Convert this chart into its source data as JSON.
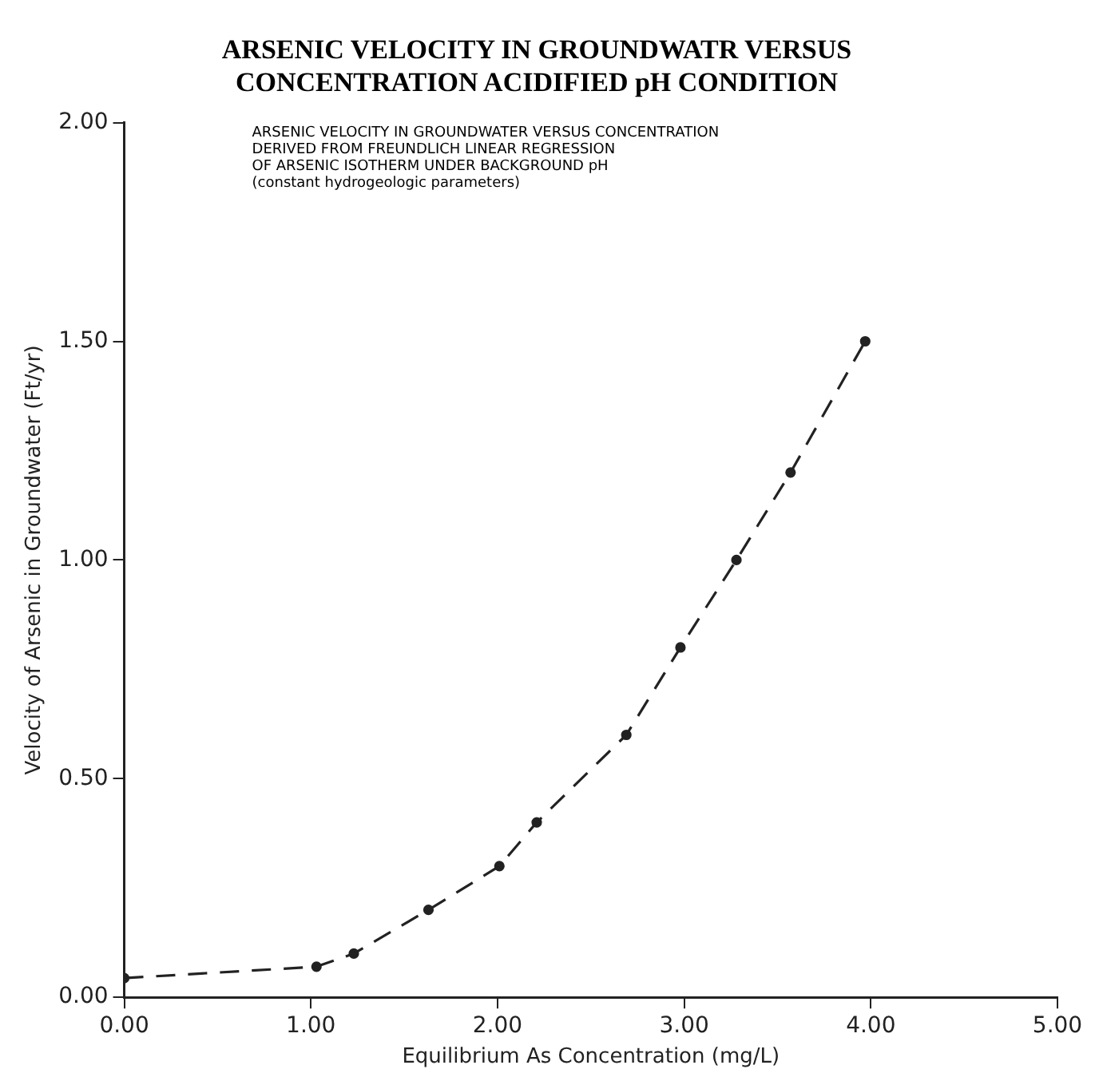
{
  "chart_data": {
    "type": "line",
    "title": [
      "ARSENIC VELOCITY IN GROUNDWATR VERSUS",
      "CONCENTRATION ACIDIFIED pH CONDITION"
    ],
    "xlabel": "Equilibrium As Concentration (mg/L)",
    "ylabel": "Velocity of Arsenic in Groundwater (Ft/yr)",
    "annotations": [
      "ARSENIC VELOCITY IN GROUNDWATER VERSUS CONCENTRATION",
      "DERIVED FROM FREUNDLICH LINEAR REGRESSION",
      "OF ARSENIC ISOTHERM UNDER BACKGROUND pH",
      "(constant hydrogeologic parameters)"
    ],
    "x": [
      0,
      1.03,
      1.23,
      1.63,
      2.01,
      2.21,
      2.69,
      2.98,
      3.28,
      3.57,
      3.97
    ],
    "series": [
      {
        "color": "#222222",
        "values": [
          0.044,
          0.07,
          0.1,
          0.2,
          0.3,
          0.4,
          0.6,
          0.8,
          1.0,
          1.2,
          1.5
        ]
      }
    ],
    "xlim": [
      0,
      5
    ],
    "xticks": [
      {
        "value": 0,
        "label": "0.00"
      },
      {
        "value": 1,
        "label": "1.00"
      },
      {
        "value": 2,
        "label": "2.00"
      },
      {
        "value": 3,
        "label": "3.00"
      },
      {
        "value": 4,
        "label": "4.00"
      },
      {
        "value": 5,
        "label": "5.00"
      }
    ],
    "ylim": [
      0,
      2
    ],
    "yticks": [
      {
        "value": 0,
        "label": "0.00"
      },
      {
        "value": 0.5,
        "label": "0.50"
      },
      {
        "value": 1,
        "label": "1.00"
      },
      {
        "value": 1.5,
        "label": "1.50"
      },
      {
        "value": 2,
        "label": "2.00"
      }
    ],
    "grid": false,
    "legend": false,
    "marker": "circle",
    "line_style": "dashed"
  }
}
